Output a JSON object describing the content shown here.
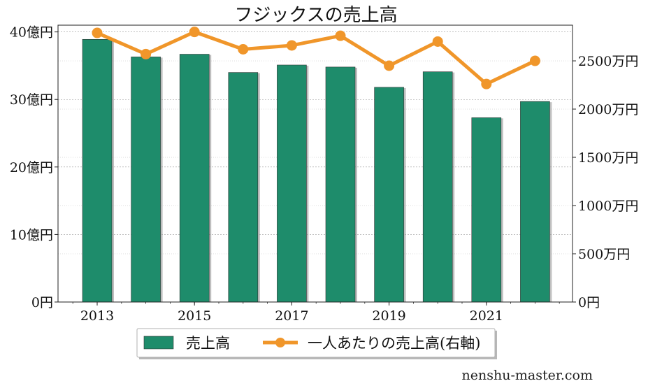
{
  "chart_data": {
    "type": "bar",
    "title": "フジックスの売上高",
    "categories": [
      "2013",
      "2014",
      "2015",
      "2016",
      "2017",
      "2018",
      "2019",
      "2020",
      "2021",
      "2022"
    ],
    "x_tick_labels": [
      "2013",
      "2015",
      "2017",
      "2019",
      "2021"
    ],
    "series": [
      {
        "name": "売上高",
        "type": "bar",
        "axis": "left",
        "unit": "億円",
        "values": [
          38.9,
          36.3,
          36.7,
          34.0,
          35.1,
          34.8,
          31.8,
          34.1,
          27.3,
          29.7
        ],
        "color": "#1e8c6b"
      },
      {
        "name": "一人あたりの売上高(右軸)",
        "type": "line",
        "axis": "right",
        "unit": "万円",
        "values": [
          2790,
          2570,
          2800,
          2620,
          2660,
          2760,
          2450,
          2700,
          2260,
          2500
        ],
        "color": "#f0962a"
      }
    ],
    "y_left": {
      "ylim": [
        0,
        41
      ],
      "ticks": [
        0,
        10,
        20,
        30,
        40
      ],
      "tick_labels": [
        "0円",
        "10億円",
        "20億円",
        "30億円",
        "40億円"
      ]
    },
    "y_right": {
      "ylim": [
        0,
        2870
      ],
      "ticks": [
        0,
        500,
        1000,
        1500,
        2000,
        2500
      ],
      "tick_labels": [
        "0円",
        "500万円",
        "1000万円",
        "1500万円",
        "2000万円",
        "2500万円"
      ]
    },
    "grid": true,
    "legend_position": "bottom-center"
  },
  "watermark": "nenshu-master.com"
}
